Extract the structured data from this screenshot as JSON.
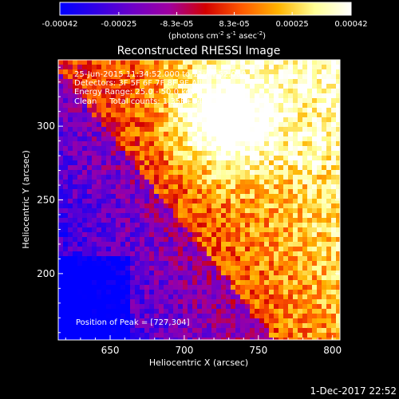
{
  "chart_data": {
    "type": "heatmap",
    "title": "Reconstructed RHESSI Image",
    "xlabel": "Heliocentric X (arcsec)",
    "ylabel": "Heliocentric Y (arcsec)",
    "xlim": [
      615,
      805
    ],
    "ylim": [
      155,
      345
    ],
    "x_ticks": [
      650,
      700,
      750,
      800
    ],
    "y_ticks": [
      200,
      250,
      300
    ],
    "x_tick_labels": [
      "650",
      "700",
      "750",
      "800"
    ],
    "y_tick_labels": [
      "200",
      "250",
      "300"
    ],
    "colorbar": {
      "range": [
        -0.00042,
        0.00042
      ],
      "tick_values": [
        -0.00042,
        -0.00025,
        -8.3e-05,
        8.3e-05,
        0.00025,
        0.00042
      ],
      "tick_labels": [
        "-0.00042",
        "-0.00025",
        "-8.3e-05",
        "8.3e-05",
        "0.00025",
        "0.00042"
      ],
      "units": "(photons cm",
      "units_parts": [
        "(photons cm",
        "-2",
        " s",
        "-1",
        " asec",
        "-2",
        ")"
      ],
      "colormap": [
        "#0000ff",
        "#3200e6",
        "#6e00c8",
        "#a000a0",
        "#d20000",
        "#ff5a00",
        "#ffb400",
        "#ffff96",
        "#ffffff"
      ]
    },
    "annotations": [
      "25-Jun-2015 11:34:52.000 to 11:44:52.000",
      "Detectors: 3F 5F 6F 7F 8F 9F All",
      "Energy Range: 25.0 - 50.0 keV",
      "Clean     Total counts: 1.35E+04"
    ],
    "peak_label": "Position of Peak = [727,304]",
    "peak": [
      727,
      304
    ],
    "footer": "1-Dec-2017 22:52"
  }
}
